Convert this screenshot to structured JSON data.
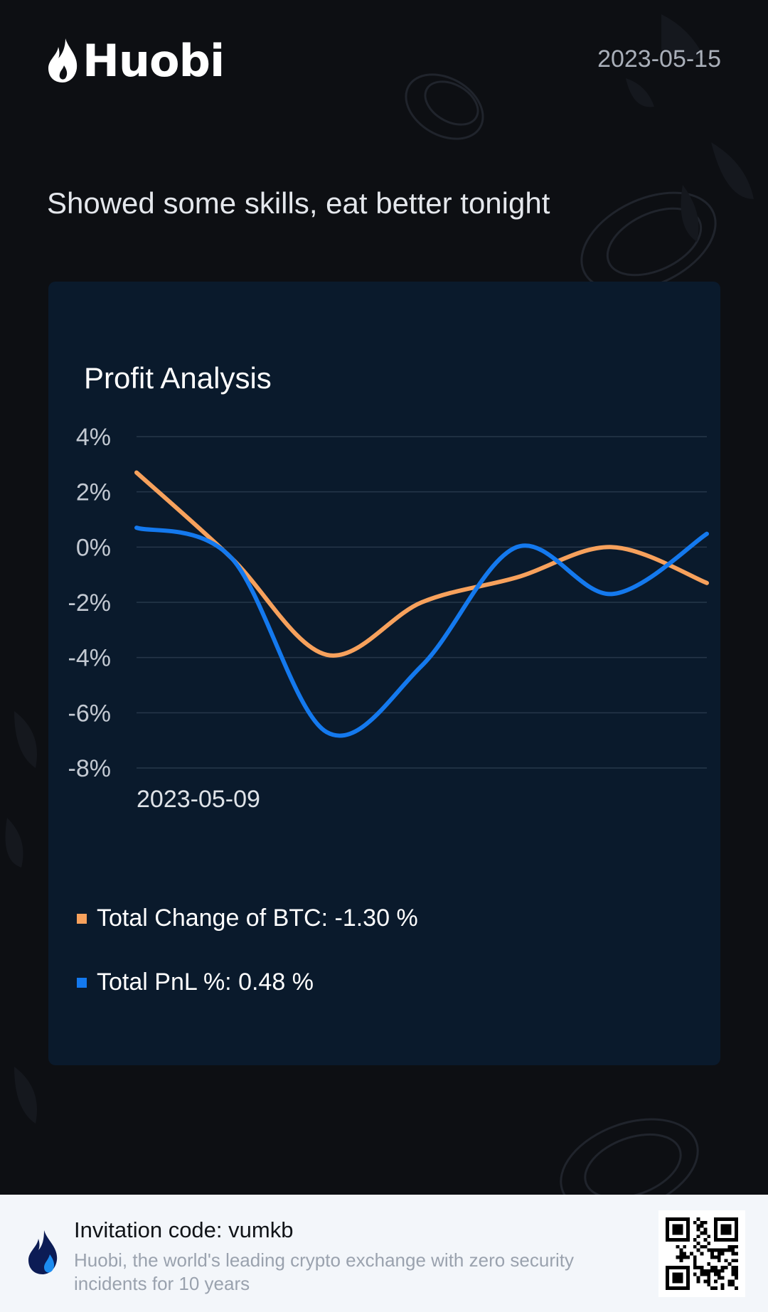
{
  "brand": {
    "name": "Huobi",
    "logo_icon": "flame-icon"
  },
  "header": {
    "date": "2023-05-15"
  },
  "tagline": "Showed some skills, eat better tonight",
  "card": {
    "title": "Profit Analysis"
  },
  "chart_data": {
    "type": "line",
    "title": "Profit Analysis",
    "xlabel": "",
    "ylabel": "",
    "x_tick_labels": [
      "2023-05-09"
    ],
    "y_tick_labels": [
      "4%",
      "2%",
      "0%",
      "-2%",
      "-4%",
      "-6%",
      "-8%"
    ],
    "ylim": [
      -8,
      4
    ],
    "grid": true,
    "legend_position": "bottom",
    "x": [
      0,
      1,
      2,
      3,
      4,
      5,
      6
    ],
    "series": [
      {
        "name": "Total Change of BTC",
        "color": "#f7a15c",
        "values": [
          2.7,
          -0.4,
          -3.9,
          -2.0,
          -1.1,
          0.0,
          -1.3
        ]
      },
      {
        "name": "Total PnL %",
        "color": "#1479ee",
        "values": [
          0.7,
          -0.4,
          -6.7,
          -4.3,
          0.0,
          -1.7,
          0.48
        ]
      }
    ]
  },
  "legend": [
    {
      "label": "Total Change of BTC: -1.30 %",
      "color": "#f7a15c"
    },
    {
      "label": "Total PnL %: 0.48 %",
      "color": "#1479ee"
    }
  ],
  "footer": {
    "logo_icon": "flame-icon",
    "invitation": "Invitation code: vumkb",
    "slogan": "Huobi, the world's leading crypto exchange with zero security incidents for 10 years",
    "qr_icon": "qr-code-icon"
  }
}
